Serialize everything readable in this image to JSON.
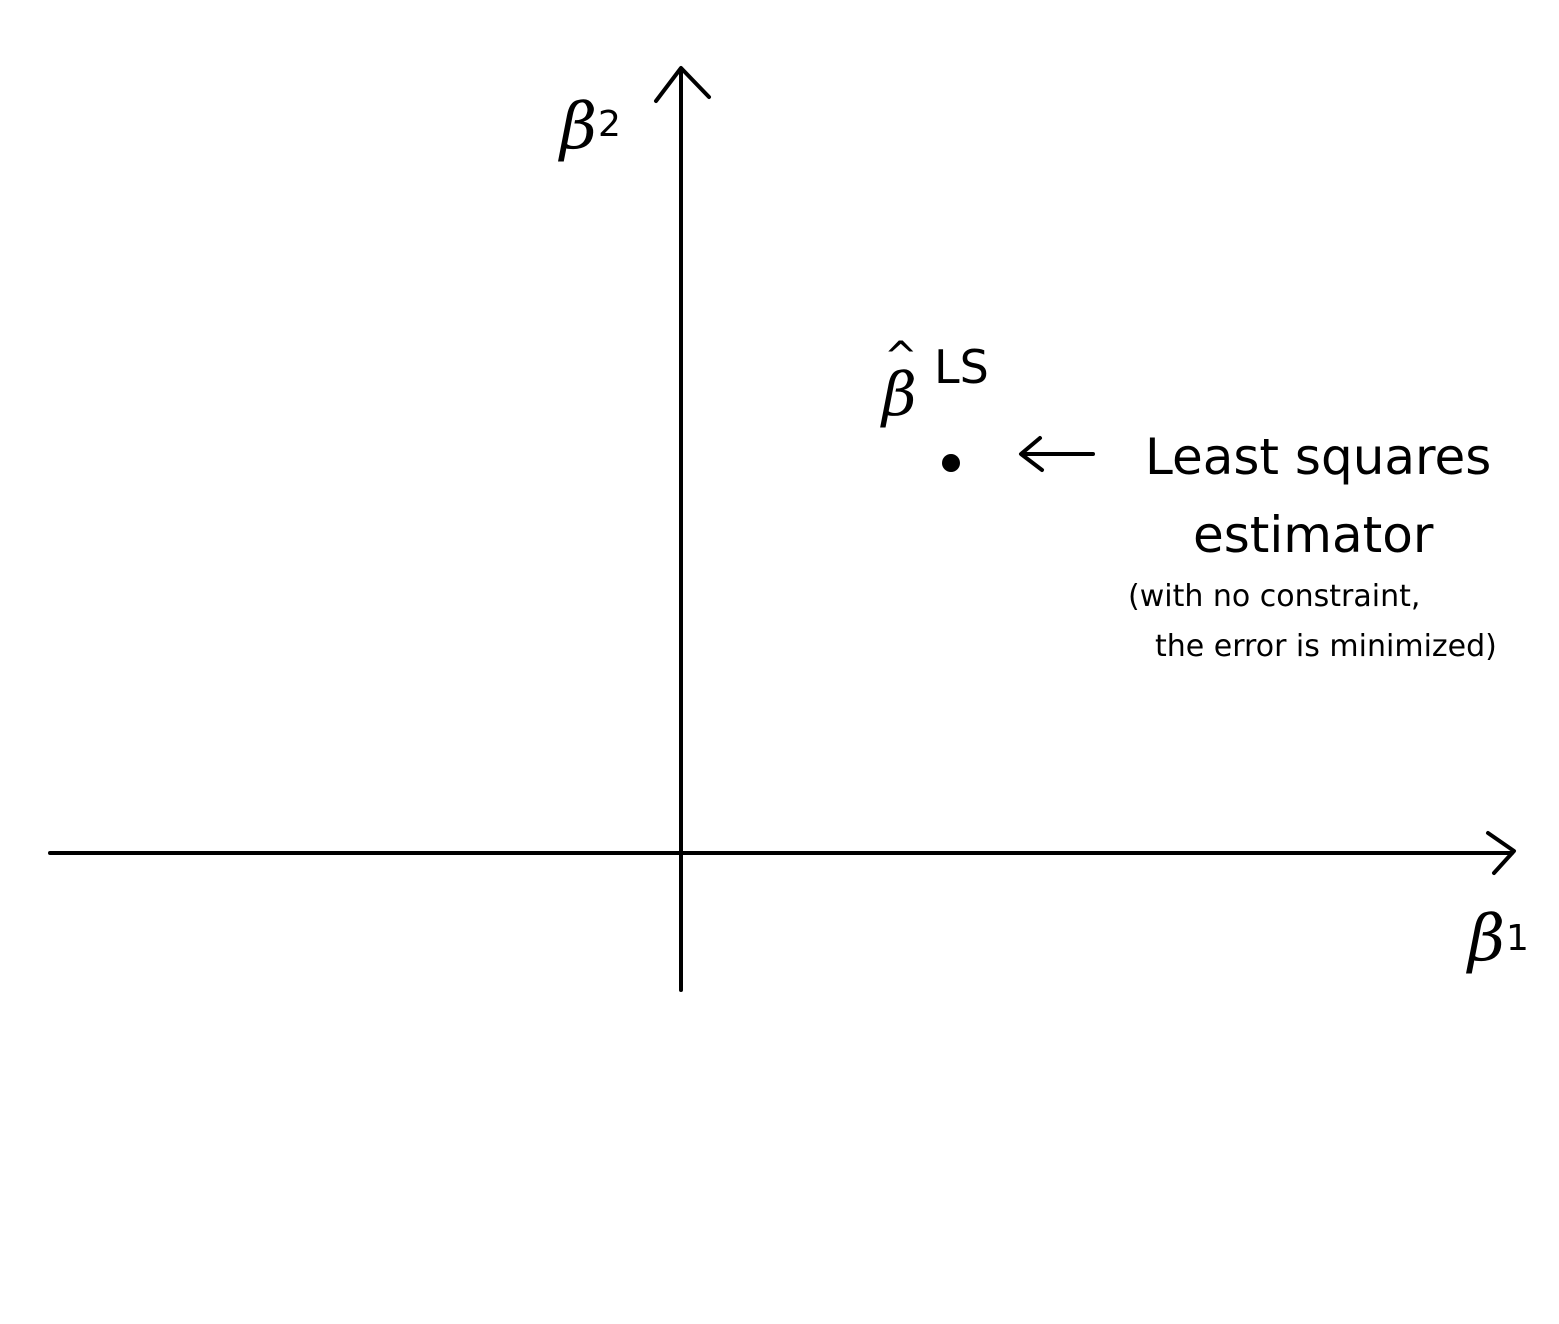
{
  "diagram": {
    "colors": {
      "ink": "#000000",
      "background": "#ffffff"
    },
    "axes": {
      "x_label": {
        "symbol": "β",
        "subscript": "1"
      },
      "y_label": {
        "symbol": "β",
        "subscript": "2"
      }
    },
    "estimator_point": {
      "symbol": "β",
      "hat": "^",
      "superscript": "LS"
    },
    "annotation": {
      "arrow": "←",
      "title_line1": "Least squares",
      "title_line2": "estimator",
      "note_line1": "(with no constraint,",
      "note_line2": "the error is minimized)"
    }
  }
}
